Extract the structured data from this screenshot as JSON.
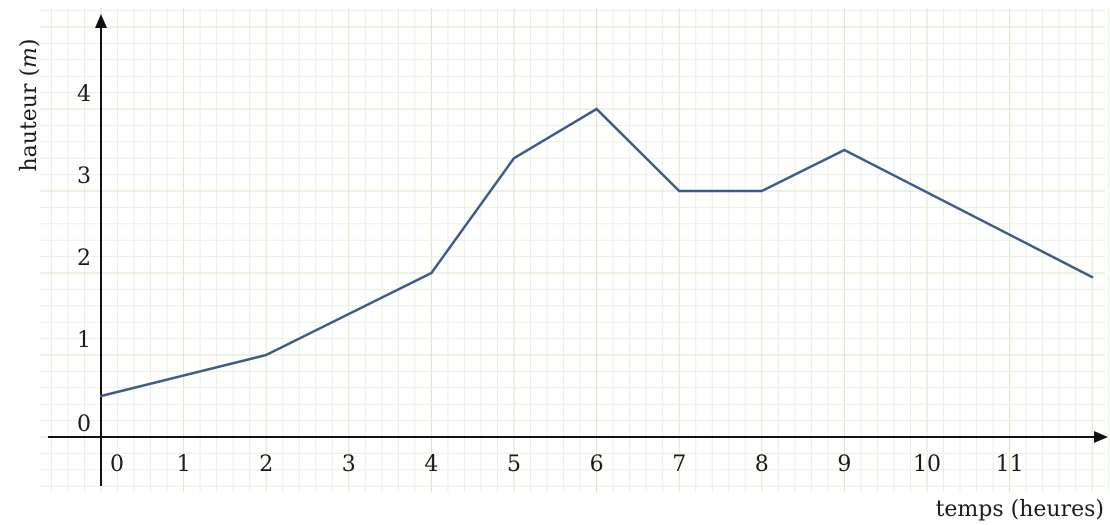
{
  "chart_data": {
    "type": "line",
    "xlabel": "temps (heures)",
    "ylabel": "hauteur (m)",
    "ylabel_main": "hauteur (",
    "ylabel_unit": "m",
    "ylabel_close": ")",
    "x_ticks": [
      0,
      1,
      2,
      3,
      4,
      5,
      6,
      7,
      8,
      9,
      10,
      11
    ],
    "y_ticks": [
      0,
      1,
      2,
      3,
      4
    ],
    "xlim": [
      0,
      12
    ],
    "ylim": [
      0,
      4
    ],
    "grid": true,
    "series": [
      {
        "x": [
          0,
          2,
          4,
          5,
          6,
          7,
          8,
          9,
          12
        ],
        "values": [
          0.5,
          1,
          2,
          3.4,
          4,
          3,
          3,
          3.5,
          1.95
        ]
      }
    ],
    "colors": {
      "line": "#3f5a8a",
      "grid_major": "#d9e6c8",
      "grid_minor": "#e9f1df",
      "axis": "#111111"
    }
  }
}
